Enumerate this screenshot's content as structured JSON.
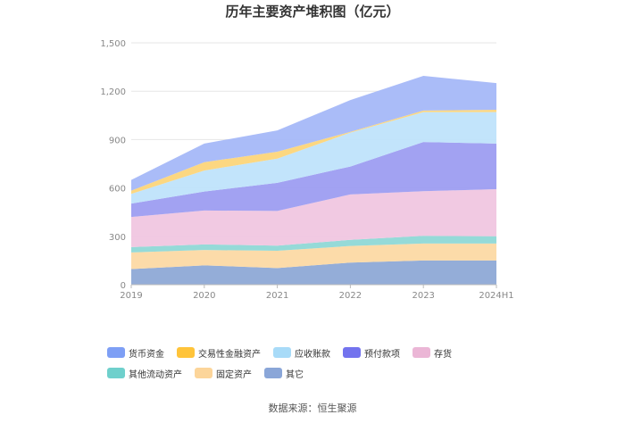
{
  "chart_data": {
    "type": "area",
    "stacked": true,
    "title": "历年主要资产堆积图（亿元）",
    "categories": [
      "2019",
      "2020",
      "2021",
      "2022",
      "2023",
      "2024H1"
    ],
    "ylim": [
      0,
      1500
    ],
    "yticks": [
      "0",
      "300",
      "600",
      "900",
      "1,200",
      "1,500"
    ],
    "grid": true,
    "legend_position": "bottom",
    "series": [
      {
        "name": "其它",
        "color": "#8ea9d6",
        "values": [
          97,
          120,
          103,
          137,
          150,
          150
        ]
      },
      {
        "name": "固定资产",
        "color": "#fcd9a4",
        "values": [
          103,
          95,
          107,
          103,
          105,
          105
        ]
      },
      {
        "name": "其他流动资产",
        "color": "#8fd8d6",
        "values": [
          33,
          35,
          32,
          38,
          48,
          45
        ]
      },
      {
        "name": "存货",
        "color": "#f0c6e0",
        "values": [
          187,
          210,
          215,
          282,
          277,
          292
        ]
      },
      {
        "name": "预付款项",
        "color": "#9d9df1",
        "values": [
          83,
          118,
          175,
          173,
          305,
          283
        ]
      },
      {
        "name": "应收账款",
        "color": "#bfe3fb",
        "values": [
          60,
          130,
          150,
          210,
          185,
          195
        ]
      },
      {
        "name": "交易性金融资产",
        "color": "#fcd57a",
        "values": [
          20,
          52,
          43,
          5,
          10,
          15
        ]
      },
      {
        "name": "货币资金",
        "color": "#a5b8f8",
        "values": [
          67,
          115,
          132,
          197,
          215,
          165
        ]
      }
    ]
  },
  "legend_order": [
    {
      "name": "货币资金",
      "color": "#7e9ff5"
    },
    {
      "name": "交易性金融资产",
      "color": "#ffc43a"
    },
    {
      "name": "应收账款",
      "color": "#a8dbf8"
    },
    {
      "name": "预付款项",
      "color": "#7373ee"
    },
    {
      "name": "存货",
      "color": "#ebb6d6"
    },
    {
      "name": "其他流动资产",
      "color": "#6fd0cc"
    },
    {
      "name": "固定资产",
      "color": "#fcd59a"
    },
    {
      "name": "其它",
      "color": "#8aa6d8"
    }
  ],
  "source": "数据来源：恒生聚源"
}
